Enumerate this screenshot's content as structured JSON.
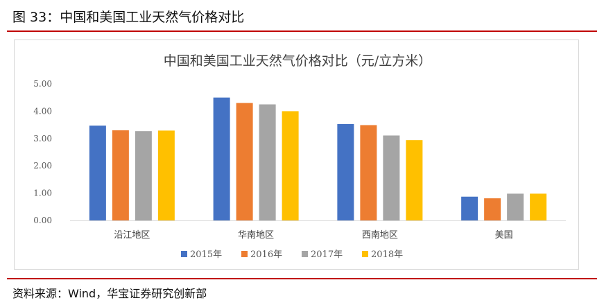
{
  "figure": {
    "title": "图 33：中国和美国工业天然气价格对比",
    "source": "资料来源：Wind，华宝证券研究创新部"
  },
  "colors": {
    "accent_rule": "#c00000"
  },
  "chart_data": {
    "type": "bar",
    "title": "中国和美国工业天然气价格对比（元/立方米）",
    "categories": [
      "沿江地区",
      "华南地区",
      "西南地区",
      "美国"
    ],
    "series": [
      {
        "name": "2015年",
        "color": "#4472c4",
        "values": [
          3.47,
          4.5,
          3.53,
          0.87
        ]
      },
      {
        "name": "2016年",
        "color": "#ed7d31",
        "values": [
          3.3,
          4.3,
          3.49,
          0.81
        ]
      },
      {
        "name": "2017年",
        "color": "#a5a5a5",
        "values": [
          3.27,
          4.25,
          3.11,
          0.98
        ]
      },
      {
        "name": "2018年",
        "color": "#ffc000",
        "values": [
          3.29,
          4.0,
          2.94,
          0.98
        ]
      }
    ],
    "yticks": [
      "0.00",
      "1.00",
      "2.00",
      "3.00",
      "4.00",
      "5.00"
    ],
    "ylim": [
      0,
      5
    ],
    "grid": false,
    "legend": "bottom"
  }
}
